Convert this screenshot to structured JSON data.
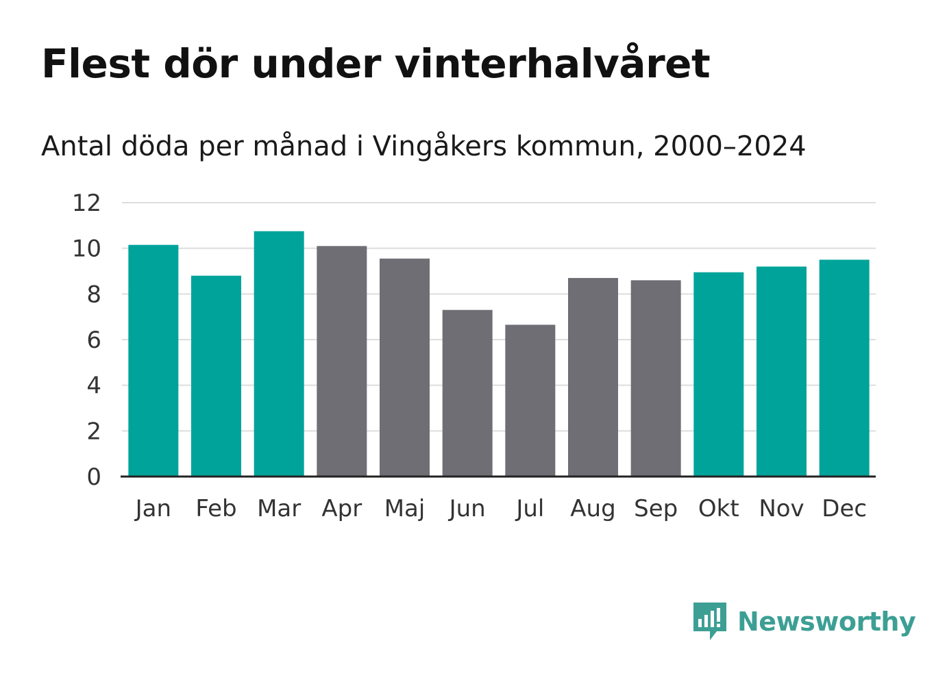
{
  "title": "Flest dör under vinterhalvåret",
  "subtitle": "Antal döda per månad i Vingåkers kommun, 2000–2024",
  "brand": {
    "name": "Newsworthy",
    "icon": "newsworthy-logo-icon",
    "color": "#3d9f94"
  },
  "colors": {
    "winter": "#00a39a",
    "summer": "#6f6e74",
    "grid": "#dddddd",
    "axis": "#222222"
  },
  "chart_data": {
    "type": "bar",
    "categories": [
      "Jan",
      "Feb",
      "Mar",
      "Apr",
      "Maj",
      "Jun",
      "Jul",
      "Aug",
      "Sep",
      "Okt",
      "Nov",
      "Dec"
    ],
    "values": [
      10.15,
      8.8,
      10.75,
      10.1,
      9.55,
      7.3,
      6.65,
      8.7,
      8.6,
      8.95,
      9.2,
      9.5
    ],
    "highlight": [
      true,
      true,
      true,
      false,
      false,
      false,
      false,
      false,
      false,
      true,
      true,
      true
    ],
    "title": "Flest dör under vinterhalvåret",
    "xlabel": "",
    "ylabel": "",
    "ylim": [
      0,
      12
    ],
    "yticks": [
      0,
      2,
      4,
      6,
      8,
      10,
      12
    ],
    "grid": true
  }
}
